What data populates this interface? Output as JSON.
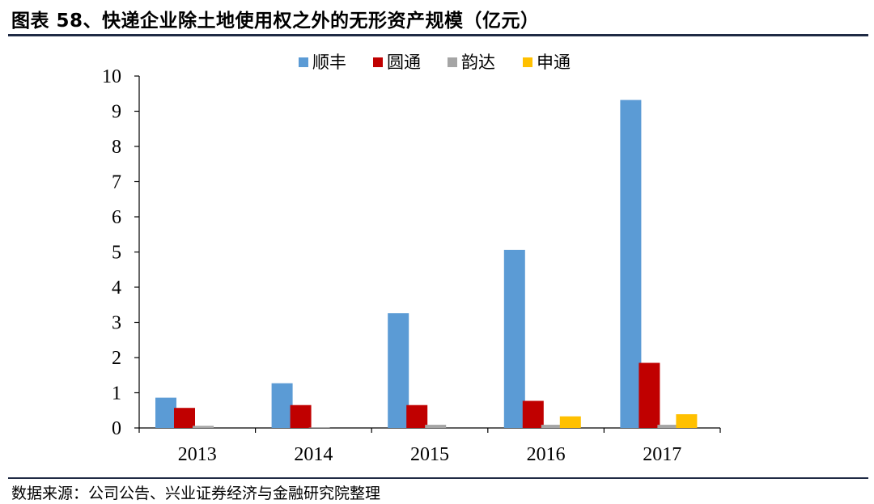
{
  "header": {
    "title": "图表 58、快递企业除土地使用权之外的无形资产规模（亿元）"
  },
  "footer": {
    "source": "数据来源：公司公告、兴业证券经济与金融研究院整理"
  },
  "chart_data": {
    "type": "bar",
    "title": "",
    "xlabel": "",
    "ylabel": "",
    "categories": [
      "2013",
      "2014",
      "2015",
      "2016",
      "2017"
    ],
    "ylim": [
      0,
      10
    ],
    "yticks": [
      0,
      1,
      2,
      3,
      4,
      5,
      6,
      7,
      8,
      9,
      10
    ],
    "grid": false,
    "legend_position": "top-center",
    "series": [
      {
        "name": "顺丰",
        "color": "#5b9bd5",
        "values": [
          0.86,
          1.27,
          3.26,
          5.06,
          9.32
        ]
      },
      {
        "name": "圆通",
        "color": "#c00000",
        "values": [
          0.57,
          0.65,
          0.65,
          0.77,
          1.85
        ]
      },
      {
        "name": "韵达",
        "color": "#a5a5a5",
        "values": [
          0.06,
          0.01,
          0.09,
          0.09,
          0.09
        ]
      },
      {
        "name": "申通",
        "color": "#ffc000",
        "values": [
          0.0,
          0.0,
          0.0,
          0.33,
          0.39
        ]
      }
    ]
  }
}
